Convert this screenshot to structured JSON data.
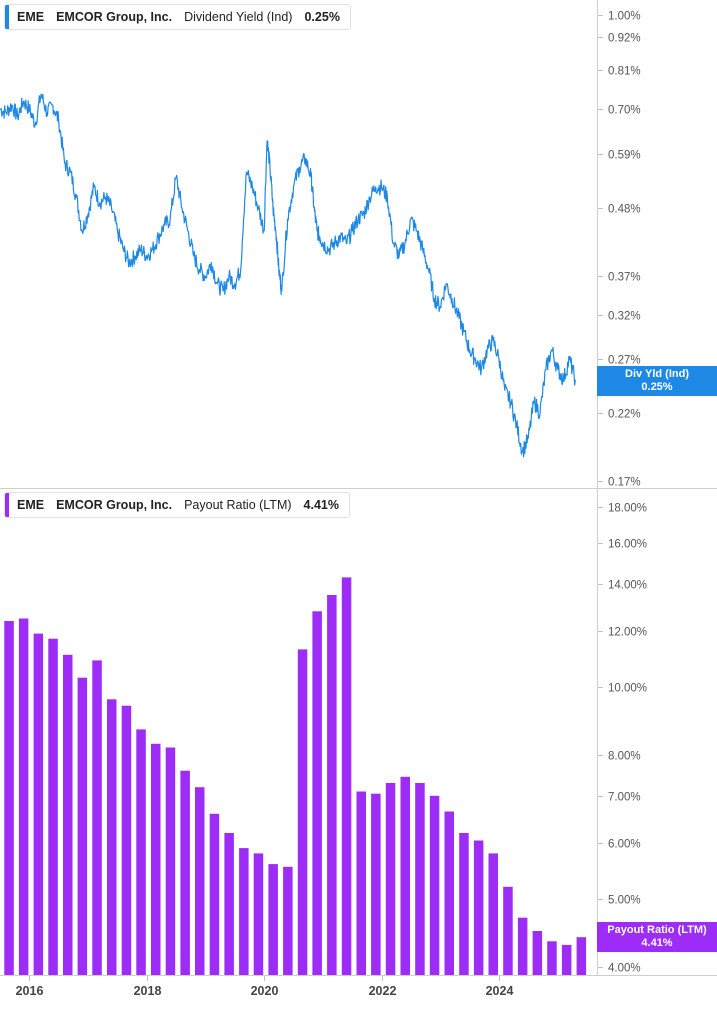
{
  "top_legend": {
    "ticker": "EME",
    "company": "EMCOR Group, Inc.",
    "metric": "Dividend Yield (Ind)",
    "value": "0.25%"
  },
  "bottom_legend": {
    "ticker": "EME",
    "company": "EMCOR Group, Inc.",
    "metric": "Payout Ratio (LTM)",
    "value": "4.41%"
  },
  "top_badge": {
    "line1": "Div Yld (Ind)",
    "line2": "0.25%"
  },
  "bottom_badge": {
    "line1": "Payout Ratio (LTM)",
    "line2": "4.41%"
  },
  "colors": {
    "yield_line": "#1e88e5",
    "payout_bar": "#9d2cf7",
    "grid": "#d8d8d8",
    "axis_text": "#555555"
  },
  "chart_data": [
    {
      "type": "line",
      "scale": "log",
      "title": "",
      "xlabel": "",
      "ylabel": "",
      "ylim": [
        0.17,
        1.0
      ],
      "yticks": [
        1.0,
        0.92,
        0.81,
        0.7,
        0.59,
        0.48,
        0.37,
        0.32,
        0.27,
        0.22,
        0.17
      ],
      "ytick_labels": [
        "1.00%",
        "0.92%",
        "0.81%",
        "0.70%",
        "0.59%",
        "0.48%",
        "0.37%",
        "0.32%",
        "0.27%",
        "0.22%",
        "0.17%"
      ],
      "series": [
        {
          "x": [
            2015.5,
            2015.6,
            2015.7,
            2015.8,
            2015.9,
            2016.0,
            2016.1,
            2016.2,
            2016.3,
            2016.4,
            2016.5,
            2016.6,
            2016.7,
            2016.8,
            2016.9,
            2017.0,
            2017.1,
            2017.2,
            2017.3,
            2017.4,
            2017.5,
            2017.6,
            2017.7,
            2017.8,
            2017.9,
            2018.0,
            2018.1,
            2018.2,
            2018.3,
            2018.4,
            2018.5,
            2018.6,
            2018.7,
            2018.8,
            2018.9,
            2019.0,
            2019.1,
            2019.2,
            2019.3,
            2019.4,
            2019.5,
            2019.6,
            2019.7,
            2019.8,
            2019.9,
            2020.0,
            2020.05,
            2020.1,
            2020.15,
            2020.2,
            2020.25,
            2020.3,
            2020.4,
            2020.5,
            2020.6,
            2020.7,
            2020.8,
            2020.85,
            2020.9,
            2020.95,
            2021.0,
            2021.1,
            2021.2,
            2021.3,
            2021.4,
            2021.5,
            2021.6,
            2021.7,
            2021.8,
            2021.9,
            2022.0,
            2022.1,
            2022.2,
            2022.3,
            2022.4,
            2022.5,
            2022.6,
            2022.7,
            2022.8,
            2022.9,
            2023.0,
            2023.1,
            2023.2,
            2023.3,
            2023.4,
            2023.5,
            2023.6,
            2023.7,
            2023.8,
            2023.9,
            2024.0,
            2024.1,
            2024.2,
            2024.3,
            2024.4,
            2024.5,
            2024.6,
            2024.7,
            2024.8,
            2024.9,
            2025.0,
            2025.1,
            2025.2,
            2025.3
          ],
          "values": [
            0.7,
            0.69,
            0.71,
            0.68,
            0.72,
            0.7,
            0.66,
            0.74,
            0.69,
            0.71,
            0.67,
            0.57,
            0.55,
            0.5,
            0.44,
            0.47,
            0.52,
            0.49,
            0.5,
            0.48,
            0.44,
            0.41,
            0.39,
            0.4,
            0.41,
            0.4,
            0.41,
            0.43,
            0.45,
            0.46,
            0.54,
            0.48,
            0.44,
            0.4,
            0.38,
            0.37,
            0.39,
            0.36,
            0.35,
            0.37,
            0.36,
            0.38,
            0.55,
            0.52,
            0.48,
            0.44,
            0.62,
            0.56,
            0.48,
            0.44,
            0.38,
            0.35,
            0.46,
            0.52,
            0.56,
            0.58,
            0.54,
            0.48,
            0.44,
            0.43,
            0.42,
            0.41,
            0.42,
            0.43,
            0.42,
            0.44,
            0.46,
            0.47,
            0.5,
            0.52,
            0.52,
            0.5,
            0.42,
            0.4,
            0.42,
            0.46,
            0.44,
            0.41,
            0.38,
            0.34,
            0.33,
            0.36,
            0.34,
            0.32,
            0.3,
            0.28,
            0.27,
            0.26,
            0.28,
            0.29,
            0.27,
            0.24,
            0.23,
            0.21,
            0.19,
            0.2,
            0.23,
            0.22,
            0.26,
            0.28,
            0.26,
            0.25,
            0.27,
            0.25
          ]
        }
      ]
    },
    {
      "type": "bar",
      "scale": "log",
      "title": "",
      "xlabel": "",
      "ylabel": "",
      "ylim": [
        4.0,
        18.0
      ],
      "yticks": [
        18,
        16,
        14,
        12,
        10,
        8,
        7,
        6,
        5,
        4
      ],
      "ytick_labels": [
        "18.00%",
        "16.00%",
        "14.00%",
        "12.00%",
        "10.00%",
        "8.00%",
        "7.00%",
        "6.00%",
        "5.00%",
        "4.00%"
      ],
      "xticks": [
        2016,
        2018,
        2020,
        2022,
        2024
      ],
      "xtick_labels": [
        "2016",
        "2018",
        "2020",
        "2022",
        "2024"
      ],
      "series": [
        {
          "x": [
            2015.5,
            2015.75,
            2016.0,
            2016.25,
            2016.5,
            2016.75,
            2017.0,
            2017.25,
            2017.5,
            2017.75,
            2018.0,
            2018.25,
            2018.5,
            2018.75,
            2019.0,
            2019.25,
            2019.5,
            2019.75,
            2020.0,
            2020.25,
            2020.5,
            2020.75,
            2021.0,
            2021.25,
            2021.5,
            2021.75,
            2022.0,
            2022.25,
            2022.5,
            2022.75,
            2023.0,
            2023.25,
            2023.5,
            2023.75,
            2024.0,
            2024.25,
            2024.5,
            2024.75,
            2025.0,
            2025.25
          ],
          "values": [
            12.4,
            12.5,
            11.9,
            11.7,
            11.1,
            10.3,
            10.9,
            9.6,
            9.4,
            8.7,
            8.3,
            8.2,
            7.6,
            7.2,
            6.6,
            6.2,
            5.9,
            5.8,
            5.6,
            5.55,
            11.3,
            12.8,
            13.5,
            14.3,
            7.1,
            7.05,
            7.3,
            7.45,
            7.3,
            7.0,
            6.65,
            6.2,
            6.05,
            5.8,
            5.2,
            4.7,
            4.5,
            4.35,
            4.3,
            4.41
          ]
        }
      ]
    }
  ]
}
